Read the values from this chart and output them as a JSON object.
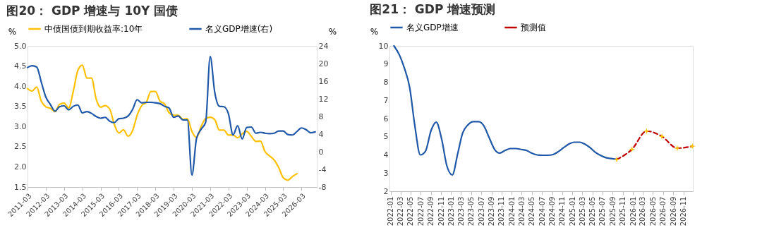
{
  "chart_data": [
    {
      "type": "line",
      "title": "图20：  GDP 增速与 10Y 国债",
      "ylabel": "%",
      "y2label": "%",
      "x": [
        "2011-03",
        "2011-06",
        "2011-09",
        "2011-12",
        "2012-03",
        "2012-06",
        "2012-09",
        "2012-12",
        "2013-03",
        "2013-06",
        "2013-09",
        "2013-12",
        "2014-03",
        "2014-06",
        "2014-09",
        "2014-12",
        "2015-03",
        "2015-06",
        "2015-09",
        "2015-12",
        "2016-03",
        "2016-06",
        "2016-09",
        "2016-12",
        "2017-03",
        "2017-06",
        "2017-09",
        "2017-12",
        "2018-03",
        "2018-06",
        "2018-09",
        "2018-12",
        "2019-03",
        "2019-06",
        "2019-09",
        "2019-12",
        "2020-03",
        "2020-06",
        "2020-09",
        "2020-12",
        "2021-03",
        "2021-06",
        "2021-09",
        "2021-12",
        "2022-03",
        "2022-06",
        "2022-09",
        "2022-12",
        "2023-03",
        "2023-06",
        "2023-09",
        "2023-12",
        "2024-03",
        "2024-06",
        "2024-09",
        "2024-12",
        "2025-03",
        "2025-06",
        "2025-09",
        "2025-12",
        "2026-03",
        "2026-06",
        "2026-09",
        "2026-12"
      ],
      "series": [
        {
          "name": "中债国债到期收益率:10年",
          "color": "#ffc000",
          "values": [
            3.94,
            3.88,
            3.98,
            3.63,
            3.49,
            3.45,
            3.37,
            3.55,
            3.58,
            3.46,
            3.87,
            4.39,
            4.52,
            4.2,
            4.2,
            3.69,
            3.48,
            3.52,
            3.43,
            3.05,
            2.84,
            2.92,
            2.76,
            2.9,
            3.28,
            3.52,
            3.6,
            3.87,
            3.87,
            3.63,
            3.56,
            3.34,
            3.28,
            3.28,
            3.18,
            3.19,
            2.88,
            2.73,
            3.0,
            3.2,
            3.23,
            3.17,
            2.91,
            2.91,
            2.79,
            2.79,
            2.72,
            2.82,
            2.88,
            2.76,
            2.63,
            2.64,
            2.38,
            2.27,
            2.17,
            1.98,
            1.73,
            1.67,
            1.76,
            1.83,
            null,
            null,
            null,
            null
          ]
        },
        {
          "name": "名义GDP增速(右)",
          "color": "#1f58a8",
          "axis": "y2",
          "values": [
            19.1,
            19.5,
            19.2,
            15.8,
            12.4,
            10.7,
            9.2,
            10.2,
            10.4,
            9.5,
            10.3,
            10.6,
            8.8,
            9.1,
            8.7,
            8.0,
            7.6,
            7.8,
            6.9,
            6.6,
            7.5,
            7.6,
            8.1,
            9.6,
            11.8,
            11.1,
            11.2,
            11.2,
            11.1,
            10.9,
            10.3,
            9.9,
            7.8,
            8.1,
            7.2,
            7.2,
            -5.3,
            3.0,
            5.1,
            6.7,
            21.6,
            13.4,
            10.3,
            10.2,
            8.6,
            3.8,
            5.9,
            2.9,
            5.5,
            5.6,
            4.2,
            4.4,
            4.2,
            4.1,
            4.2,
            4.7,
            4.7,
            3.9,
            3.8,
            4.6,
            5.4,
            5.0,
            4.3,
            4.5
          ]
        }
      ],
      "xlim": [
        "2011-03",
        "2027-01"
      ],
      "xticks": [
        "2011-03",
        "2012-03",
        "2013-03",
        "2014-03",
        "2015-03",
        "2016-03",
        "2017-03",
        "2018-03",
        "2019-03",
        "2020-03",
        "2021-03",
        "2022-03",
        "2023-03",
        "2024-03",
        "2025-03",
        "2026-03"
      ],
      "ylim": [
        1.5,
        5.0
      ],
      "yticks": [
        1.5,
        {
          "value": 2,
          "label": "2.0"
        },
        2.5,
        {
          "value": 3,
          "label": "3.0"
        },
        3.5,
        {
          "value": 4,
          "label": "4.0"
        },
        4.5,
        {
          "value": 5,
          "label": "5.0"
        }
      ],
      "y2lim": [
        -8,
        24
      ],
      "y2ticks": [
        -8,
        -4,
        0,
        4,
        8,
        12,
        16,
        20,
        24
      ],
      "grid": false,
      "legend": "top",
      "line_style": "solid"
    },
    {
      "type": "line",
      "title": "图21：  GDP 增速预测",
      "ylabel": "%",
      "series": [
        {
          "name": "名义GDP增速",
          "color": "#1f58a8",
          "x": [
            "2022-01-21",
            "2022-02-23",
            "2022-03-24",
            "2022-04-26",
            "2022-05-27",
            "2022-06-29",
            "2022-07-30",
            "2022-09-02",
            "2022-10-03",
            "2022-11-05",
            "2022-12-06",
            "2023-01-08",
            "2023-02-09",
            "2023-03-11",
            "2023-04-12",
            "2023-05-14",
            "2023-06-15",
            "2023-07-17",
            "2023-08-18",
            "2023-09-20",
            "2023-10-21",
            "2023-11-23",
            "2023-12-24",
            "2024-01-26",
            "2024-02-27",
            "2024-03-29",
            "2024-04-30",
            "2024-06-02",
            "2024-07-03",
            "2024-08-05",
            "2024-09-06",
            "2024-10-08",
            "2024-11-09",
            "2024-12-11",
            "2025-01-12",
            "2025-02-14",
            "2025-03-15",
            "2025-04-17",
            "2025-05-18",
            "2025-06-20",
            "2025-07-21",
            "2025-08-23",
            "2025-09-25"
          ],
          "values": [
            10.0,
            9.5,
            8.8,
            7.7,
            5.6,
            4.0,
            4.2,
            5.35,
            5.8,
            4.85,
            3.4,
            2.9,
            4.05,
            5.2,
            5.65,
            5.83,
            5.83,
            5.6,
            4.95,
            4.3,
            4.1,
            4.25,
            4.35,
            4.35,
            4.3,
            4.25,
            4.1,
            4.0,
            3.98,
            3.98,
            4.02,
            4.18,
            4.4,
            4.6,
            4.7,
            4.7,
            4.6,
            4.4,
            4.15,
            3.97,
            3.85,
            3.8,
            3.75
          ]
        },
        {
          "name": "预测值",
          "color": "#c00000",
          "line_style": "dashed",
          "marker": "star",
          "colors": [
            "#ffc000",
            "#ffc000",
            "#ffc000",
            "#ffc000",
            "#ffc000",
            "#ffc000"
          ],
          "x": [
            "2025-09-25",
            "2025-12-26",
            "2026-03-24",
            "2026-06-24",
            "2026-09-25",
            "2026-12-25"
          ],
          "values": [
            3.75,
            4.31,
            5.31,
            5.02,
            4.37,
            4.48
          ]
        }
      ],
      "xlim": [
        "2021-12-25",
        "2026-12-28"
      ],
      "xticks": [
        "2022-01",
        "2022-03",
        "2022-05",
        "2022-07",
        "2022-09",
        "2022-11",
        "2023-01",
        "2023-03",
        "2023-05",
        "2023-07",
        "2023-09",
        "2023-11",
        "2024-01",
        "2024-03",
        "2024-05",
        "2024-07",
        "2024-09",
        "2024-11",
        "2025-01",
        "2025-03",
        "2025-05",
        "2025-07",
        "2025-09",
        "2025-11",
        "2026-01",
        "2026-03",
        "2026-05",
        "2026-07",
        "2026-09",
        "2026-11"
      ],
      "ylim": [
        2,
        10
      ],
      "yticks": [
        2,
        3,
        4,
        5,
        6,
        7,
        8,
        9,
        10
      ],
      "grid": false,
      "legend": "top",
      "line_style": "solid",
      "marker": "none"
    }
  ]
}
